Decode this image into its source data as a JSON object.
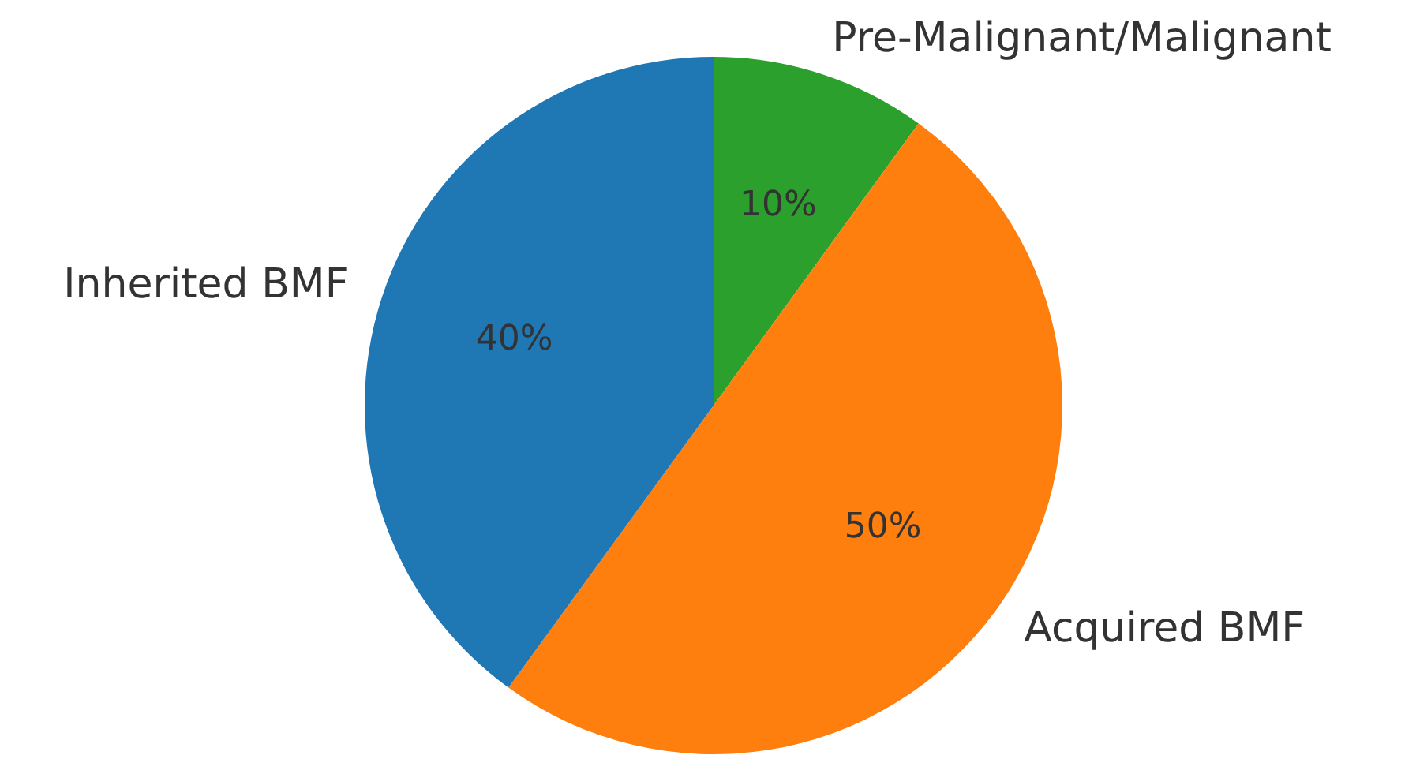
{
  "chart_data": {
    "type": "pie",
    "categories": [
      "Pre-Malignant/Malignant",
      "Acquired BMF",
      "Inherited BMF"
    ],
    "values": [
      10,
      50,
      40
    ],
    "colors": [
      "#2ca02c",
      "#ff7f0e",
      "#1f77b4"
    ],
    "value_labels": [
      "10%",
      "50%",
      "40%"
    ],
    "legend": false
  }
}
